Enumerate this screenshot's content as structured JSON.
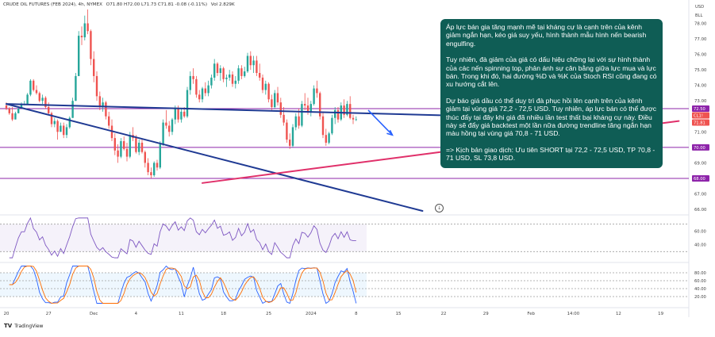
{
  "header": {
    "symbol": "CRUDE OIL FUTURES (FEB 2024), 4h, NYMEX",
    "ohlc": "O71.80 H72.00 L71.73 C71.81 -0.08 (-0.11%)",
    "volume": "Vol 2.829K"
  },
  "units": {
    "currency": "USD",
    "per": "BLL"
  },
  "note": {
    "p1": "Áp lực bán gia tăng mạnh mẽ tại kháng cự là cạnh trên của kênh giảm ngắn hạn, kéo giá suy yếu, hình thành mẫu hình nến bearish engulfing.",
    "p2": "Tuy nhiên, đà giảm của giá có dấu hiệu chững lại với sự hình thành của các nến spinning top, phản ánh sự cân bằng giữa lực mua và lực bán. Trong khi đó, hai đường %D và %K của Stoch RSI cũng đang có xu hướng cắt lên.",
    "p3": "Dự báo giá dầu có thể duy trì đà phục hồi lên cạnh trên của kênh giảm tại vùng giá 72,2 - 72,5 USD. Tuy nhiên, áp lực bán có thể được thúc đẩy tại đây khi giá đã nhiều lần test thất bại kháng cự này. Điều này sẽ đẩy giá backtest một lần nữa đường trendline tăng ngắn hạn màu hồng tại vùng giá 70,8 - 71 USD.",
    "p4": "=> Kịch bản giao dịch: Ưu tiên SHORT tại 72,2 - 72,5 USD, TP 70,8 - 71 USD, SL 73,8 USD."
  },
  "branding": {
    "logo_text": "TradingView",
    "logo_mark": "TV"
  },
  "colors": {
    "up": "#26a69a",
    "down": "#ef5350",
    "channel": "#1f3a93",
    "trend": "#e0306a",
    "level": "#8e24aa",
    "rsi": "#7e57c2",
    "stoch_k": "#2962ff",
    "stoch_d": "#ff6d00",
    "note_bg": "#0f5d55"
  },
  "chart_data": {
    "type": "candlestick",
    "price_axis": {
      "ticks": [
        "78.00",
        "77.00",
        "76.00",
        "75.00",
        "74.00",
        "73.00",
        "72.00",
        "71.00",
        "70.00",
        "69.00",
        "68.00",
        "67.00",
        "66.00"
      ],
      "ylim": [
        65.9,
        79.2
      ]
    },
    "price_tags": [
      {
        "label": "72.50",
        "value": 72.5,
        "color": "#8e24aa"
      },
      {
        "label": "CL1!",
        "value": 71.81,
        "color": "#ef5350"
      },
      {
        "label": "71.81",
        "value": 71.81,
        "color": "#ef5350"
      },
      {
        "label": "70.00",
        "value": 70.0,
        "color": "#8e24aa"
      },
      {
        "label": "68.00",
        "value": 68.0,
        "color": "#8e24aa"
      }
    ],
    "levels": [
      72.5,
      70.0,
      68.0
    ],
    "x_axis": {
      "labels": [
        "20",
        "27",
        "Dec",
        "4",
        "11",
        "18",
        "25",
        "2024",
        "8",
        "15",
        "22",
        "29",
        "Feb",
        "14:00",
        "12",
        "19",
        "26"
      ],
      "label_bars": [
        0,
        14,
        29,
        43,
        58,
        72,
        87,
        101,
        116,
        130,
        145,
        159,
        174,
        188,
        203,
        217,
        232
      ]
    },
    "candles": [
      [
        0,
        72.7,
        72.9,
        72.4,
        72.5
      ],
      [
        1,
        72.5,
        72.6,
        72.1,
        72.2
      ],
      [
        2,
        72.2,
        72.6,
        71.7,
        71.8
      ],
      [
        3,
        71.8,
        72.3,
        71.8,
        72.2
      ],
      [
        4,
        72.2,
        72.6,
        72.2,
        72.5
      ],
      [
        5,
        72.5,
        72.9,
        72.5,
        72.8
      ],
      [
        6,
        72.8,
        73.0,
        72.7,
        72.8
      ],
      [
        7,
        72.8,
        73.5,
        72.8,
        73.4
      ],
      [
        8,
        73.4,
        74.4,
        73.3,
        74.3
      ],
      [
        9,
        74.3,
        74.4,
        73.6,
        73.7
      ],
      [
        10,
        73.7,
        74.0,
        73.4,
        73.5
      ],
      [
        11,
        73.5,
        73.6,
        72.9,
        73.0
      ],
      [
        12,
        73.0,
        73.4,
        72.8,
        73.2
      ],
      [
        13,
        73.2,
        73.3,
        72.5,
        72.6
      ],
      [
        14,
        72.6,
        72.9,
        72.1,
        72.2
      ],
      [
        15,
        72.2,
        72.3,
        71.3,
        71.5
      ],
      [
        16,
        71.5,
        71.9,
        71.3,
        71.7
      ],
      [
        17,
        71.7,
        71.8,
        70.5,
        71.0
      ],
      [
        18,
        71.0,
        71.6,
        71.0,
        71.4
      ],
      [
        19,
        71.4,
        71.6,
        70.6,
        70.8
      ],
      [
        20,
        70.8,
        71.5,
        70.6,
        71.3
      ],
      [
        21,
        71.3,
        72.0,
        71.2,
        71.9
      ],
      [
        22,
        71.9,
        73.2,
        71.9,
        73.0
      ],
      [
        23,
        73.0,
        74.8,
        73.0,
        74.6
      ],
      [
        24,
        74.6,
        77.5,
        74.6,
        77.2
      ],
      [
        25,
        77.2,
        77.8,
        76.6,
        77.1
      ],
      [
        26,
        77.1,
        78.5,
        76.9,
        78.0
      ],
      [
        27,
        78.0,
        78.9,
        77.3,
        77.5
      ],
      [
        28,
        77.5,
        77.6,
        75.3,
        75.7
      ],
      [
        29,
        75.7,
        76.2,
        74.2,
        74.6
      ],
      [
        30,
        74.6,
        74.9,
        73.0,
        73.3
      ],
      [
        31,
        73.3,
        73.6,
        72.4,
        72.6
      ],
      [
        32,
        72.6,
        73.2,
        72.3,
        72.9
      ],
      [
        33,
        72.9,
        73.0,
        71.8,
        72.0
      ],
      [
        34,
        72.0,
        72.3,
        71.2,
        71.4
      ],
      [
        35,
        71.4,
        71.8,
        70.4,
        70.6
      ],
      [
        36,
        70.6,
        70.9,
        69.5,
        69.8
      ],
      [
        37,
        69.8,
        70.2,
        69.0,
        69.4
      ],
      [
        38,
        69.4,
        70.6,
        69.3,
        70.4
      ],
      [
        39,
        70.4,
        70.7,
        69.8,
        69.9
      ],
      [
        40,
        69.9,
        70.3,
        69.1,
        69.4
      ],
      [
        41,
        69.4,
        71.0,
        69.3,
        70.8
      ],
      [
        42,
        70.8,
        71.3,
        70.4,
        70.6
      ],
      [
        43,
        70.6,
        70.8,
        69.6,
        69.7
      ],
      [
        44,
        69.7,
        70.5,
        69.5,
        70.3
      ],
      [
        45,
        70.3,
        70.5,
        69.6,
        69.7
      ],
      [
        46,
        69.7,
        69.8,
        68.7,
        69.0
      ],
      [
        47,
        69.0,
        69.3,
        68.2,
        68.4
      ],
      [
        48,
        68.4,
        68.7,
        68.0,
        68.2
      ],
      [
        49,
        68.2,
        69.1,
        68.1,
        69.0
      ],
      [
        50,
        69.0,
        69.2,
        68.5,
        68.7
      ],
      [
        51,
        68.7,
        70.4,
        68.6,
        70.2
      ],
      [
        52,
        70.2,
        71.8,
        70.1,
        71.6
      ],
      [
        53,
        71.6,
        72.4,
        71.2,
        71.4
      ],
      [
        54,
        71.4,
        71.7,
        70.7,
        71.0
      ],
      [
        55,
        71.0,
        71.9,
        70.8,
        71.8
      ],
      [
        56,
        71.8,
        72.7,
        71.5,
        72.5
      ],
      [
        57,
        72.5,
        72.7,
        71.6,
        71.8
      ],
      [
        58,
        71.8,
        72.5,
        71.6,
        72.3
      ],
      [
        59,
        72.3,
        72.6,
        71.9,
        72.0
      ],
      [
        60,
        72.0,
        73.9,
        71.9,
        73.7
      ],
      [
        61,
        73.7,
        74.9,
        73.4,
        74.6
      ],
      [
        62,
        74.6,
        75.1,
        74.1,
        74.4
      ],
      [
        63,
        74.4,
        74.6,
        73.2,
        73.4
      ],
      [
        64,
        73.4,
        73.7,
        72.9,
        73.1
      ],
      [
        65,
        73.1,
        73.9,
        72.9,
        73.8
      ],
      [
        66,
        73.8,
        74.2,
        73.3,
        73.5
      ],
      [
        67,
        73.5,
        74.3,
        73.3,
        74.0
      ],
      [
        68,
        74.0,
        74.7,
        73.8,
        74.5
      ],
      [
        69,
        74.5,
        75.7,
        74.3,
        75.4
      ],
      [
        70,
        75.4,
        75.5,
        74.6,
        74.8
      ],
      [
        71,
        74.8,
        75.3,
        74.3,
        75.1
      ],
      [
        72,
        75.1,
        75.2,
        74.2,
        74.4
      ],
      [
        73,
        74.4,
        74.7,
        73.9,
        74.5
      ],
      [
        74,
        74.5,
        75.0,
        74.3,
        74.7
      ],
      [
        75,
        74.7,
        74.9,
        73.9,
        74.1
      ],
      [
        76,
        74.1,
        74.6,
        73.8,
        74.3
      ],
      [
        77,
        74.3,
        75.3,
        74.1,
        75.1
      ],
      [
        78,
        75.1,
        75.3,
        74.4,
        74.6
      ],
      [
        79,
        74.6,
        75.2,
        74.5,
        74.9
      ],
      [
        80,
        74.9,
        76.1,
        74.8,
        75.9
      ],
      [
        81,
        75.9,
        76.2,
        75.0,
        75.3
      ],
      [
        82,
        75.3,
        75.9,
        74.8,
        75.6
      ],
      [
        83,
        75.6,
        75.9,
        74.6,
        74.8
      ],
      [
        84,
        74.8,
        75.4,
        74.3,
        74.5
      ],
      [
        85,
        74.5,
        74.7,
        73.5,
        73.7
      ],
      [
        86,
        73.7,
        74.3,
        73.4,
        74.1
      ],
      [
        87,
        74.1,
        74.2,
        72.9,
        73.1
      ],
      [
        88,
        73.1,
        73.4,
        72.4,
        72.6
      ],
      [
        89,
        72.6,
        73.7,
        72.5,
        73.5
      ],
      [
        90,
        73.5,
        73.9,
        72.7,
        72.9
      ],
      [
        91,
        72.9,
        73.2,
        71.9,
        72.1
      ],
      [
        92,
        72.1,
        72.6,
        71.4,
        71.6
      ],
      [
        93,
        71.6,
        71.8,
        70.3,
        70.5
      ],
      [
        94,
        70.5,
        70.9,
        69.9,
        70.1
      ],
      [
        95,
        70.1,
        71.5,
        70.0,
        71.3
      ],
      [
        96,
        71.3,
        72.2,
        71.1,
        72.0
      ],
      [
        97,
        72.0,
        72.5,
        71.2,
        71.4
      ],
      [
        98,
        71.4,
        73.0,
        71.3,
        72.8
      ],
      [
        99,
        72.8,
        73.5,
        72.4,
        72.7
      ],
      [
        100,
        72.7,
        73.2,
        72.1,
        72.3
      ],
      [
        101,
        72.3,
        73.0,
        72.0,
        72.8
      ],
      [
        102,
        72.8,
        74.0,
        72.7,
        73.8
      ],
      [
        103,
        73.8,
        74.3,
        73.2,
        73.5
      ],
      [
        104,
        73.5,
        73.6,
        71.8,
        72.0
      ],
      [
        105,
        72.0,
        72.3,
        70.6,
        70.8
      ],
      [
        106,
        70.8,
        71.2,
        70.1,
        70.3
      ],
      [
        107,
        70.3,
        71.0,
        70.2,
        70.9
      ],
      [
        108,
        70.9,
        72.1,
        70.8,
        71.9
      ],
      [
        109,
        71.9,
        72.6,
        71.5,
        72.4
      ],
      [
        110,
        72.4,
        72.6,
        71.6,
        71.8
      ],
      [
        111,
        71.8,
        72.9,
        71.7,
        72.7
      ],
      [
        112,
        72.7,
        73.1,
        71.9,
        72.1
      ],
      [
        113,
        72.1,
        73.0,
        72.0,
        72.8
      ],
      [
        114,
        72.8,
        73.3,
        71.8,
        71.9
      ],
      [
        115,
        71.9,
        72.1,
        71.5,
        71.8
      ],
      [
        116,
        71.8,
        72.0,
        71.7,
        71.81
      ]
    ],
    "drawings": {
      "channel_upper": [
        [
          0,
          72.8
        ],
        [
          217,
          71.7
        ]
      ],
      "channel_lower": [
        [
          0,
          72.8
        ],
        [
          138,
          65.9
        ]
      ],
      "trend_pink": [
        [
          65,
          67.7
        ],
        [
          223,
          71.7
        ]
      ],
      "forecast_arrow": [
        [
          120,
          72.4
        ],
        [
          124,
          71.6
        ],
        [
          128,
          70.8
        ]
      ]
    },
    "rsi": {
      "levels": [
        60.0,
        40.0
      ],
      "upper_band": 70,
      "lower_band": 30,
      "ticks": [
        "60.00",
        "40.00"
      ],
      "ylim": [
        20,
        80
      ]
    },
    "stoch_rsi": {
      "levels": [
        80.0,
        60.0,
        40.0,
        20.0
      ],
      "ticks": [
        "80.00",
        "60.00",
        "40.00",
        "20.00"
      ],
      "ylim": [
        0,
        100
      ]
    }
  }
}
